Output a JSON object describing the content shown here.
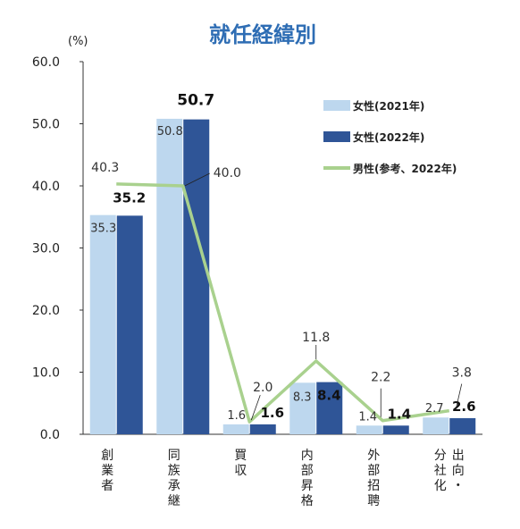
{
  "chart_data": {
    "type": "bar",
    "title": "就任経緯別",
    "unit": "(%)",
    "ylim": [
      0,
      60
    ],
    "yticks": [
      "0.0",
      "10.0",
      "20.0",
      "30.0",
      "40.0",
      "50.0",
      "60.0"
    ],
    "categories": [
      [
        "創",
        "業",
        "者"
      ],
      [
        "同",
        "族",
        "承",
        "継"
      ],
      [
        "買",
        "収"
      ],
      [
        "内",
        "部",
        "昇",
        "格"
      ],
      [
        "外",
        "部",
        "招",
        "聘"
      ],
      [
        "出",
        "向",
        "・",
        "分",
        "社",
        "化"
      ]
    ],
    "series": [
      {
        "name": "女性(2021年)",
        "type": "bar",
        "color": "#bdd7ee",
        "values": [
          35.3,
          50.8,
          1.6,
          8.3,
          1.4,
          2.7
        ],
        "labels": [
          "35.3",
          "50.8",
          "1.6",
          "8.3",
          "1.4",
          "2.7"
        ]
      },
      {
        "name": "女性(2022年)",
        "type": "bar",
        "color": "#2f5597",
        "values": [
          35.2,
          50.7,
          1.6,
          8.4,
          1.4,
          2.6
        ],
        "labels": [
          "35.2",
          "50.7",
          "1.6",
          "8.4",
          "1.4",
          "2.6"
        ]
      },
      {
        "name": "男性(参考、2022年)",
        "type": "line",
        "color": "#a9d18e",
        "values": [
          40.3,
          40.0,
          2.0,
          11.8,
          2.2,
          3.8
        ],
        "labels": [
          "40.3",
          "40.0",
          "2.0",
          "11.8",
          "2.2",
          "3.8"
        ]
      }
    ],
    "grid": false,
    "legend": "top-right"
  }
}
